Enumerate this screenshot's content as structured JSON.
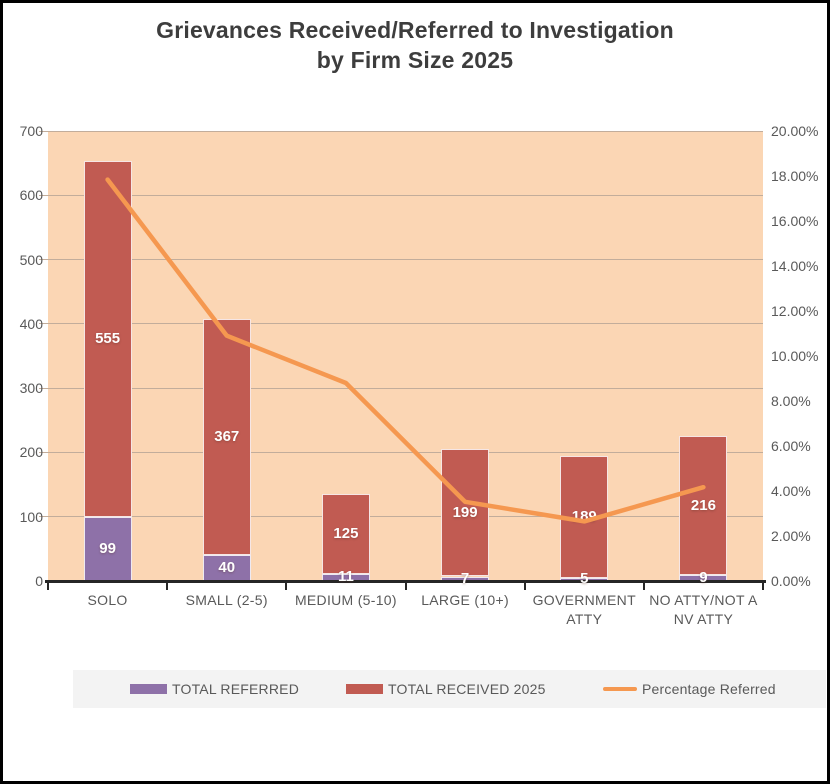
{
  "chart_data": {
    "type": "combo",
    "title": "Grievances Received/Referred to Investigation\nby Firm Size 2025",
    "categories": [
      "SOLO",
      "SMALL (2-5)",
      "MEDIUM (5-10)",
      "LARGE (10+)",
      "GOVERNMENT ATTY",
      "NO ATTY/NOT A NV ATTY"
    ],
    "category_label_lines": [
      "SOLO",
      "SMALL (2-5)",
      "MEDIUM (5-10)",
      "LARGE (10+)",
      "GOVERNMENT\nATTY",
      "NO ATTY/NOT A\nNV ATTY"
    ],
    "series": [
      {
        "name": "TOTAL REFERRED",
        "type": "bar",
        "stack": true,
        "color": "#8E71A8",
        "values": [
          99,
          40,
          11,
          7,
          5,
          9
        ]
      },
      {
        "name": "TOTAL RECEIVED 2025",
        "type": "bar",
        "stack": true,
        "color": "#C15B52",
        "values": [
          555,
          367,
          125,
          199,
          189,
          216
        ]
      },
      {
        "name": "Percentage Referred",
        "type": "line",
        "axis": "right",
        "color": "#F59850",
        "values": [
          17.84,
          10.9,
          8.8,
          3.52,
          2.65,
          4.17
        ]
      }
    ],
    "left_axis": {
      "min": 0,
      "max": 700,
      "step": 100,
      "tick_labels": [
        "0",
        "100",
        "200",
        "300",
        "400",
        "500",
        "600",
        "700"
      ]
    },
    "right_axis": {
      "min": 0,
      "max": 20,
      "step": 2,
      "format": "percent",
      "tick_labels": [
        "0.00%",
        "2.00%",
        "4.00%",
        "6.00%",
        "8.00%",
        "10.00%",
        "12.00%",
        "14.00%",
        "16.00%",
        "18.00%",
        "20.00%"
      ]
    },
    "grid": true,
    "legend_position": "bottom",
    "colors": {
      "plot_background": "#FBD6B4",
      "gridline": "#C2AD9B",
      "axis_line": "#262626",
      "title_text": "#3d3d3d",
      "axis_text": "#595959",
      "bar_value_text": "#ffffff",
      "legend_background": "#F3F3F3",
      "legend_text": "#595959",
      "frame_border": "#000000"
    }
  }
}
